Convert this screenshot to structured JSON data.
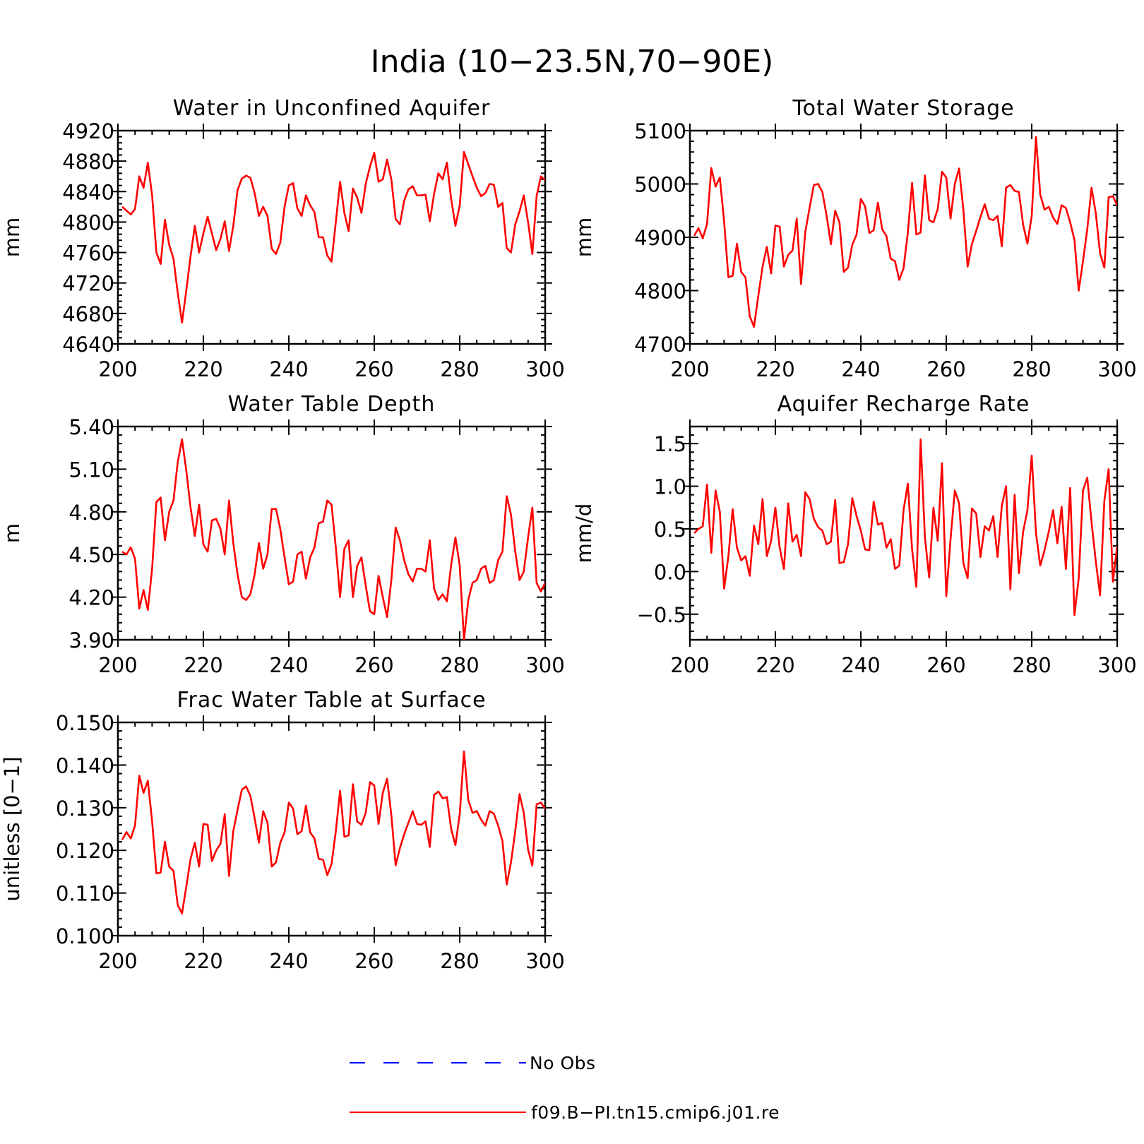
{
  "figure": {
    "title": "India (10−23.5N,70−90E)"
  },
  "legend": [
    {
      "label": "No Obs",
      "color": "#0000ff",
      "dash": "dashed"
    },
    {
      "label": "f09.B−PI.tn15.cmip6.j01.re",
      "color": "#ff0000",
      "dash": "solid"
    }
  ],
  "colors": {
    "series": "#ff0000",
    "obs": "#0000ff",
    "axis": "#000000"
  },
  "chart_data": [
    {
      "type": "line",
      "title": "Water in Unconfined Aquifer",
      "ylabel": "mm",
      "xlabel": "",
      "xlim": [
        200,
        300
      ],
      "ylim": [
        4640,
        4920
      ],
      "xticks": [
        200,
        220,
        240,
        260,
        280,
        300
      ],
      "yticks": [
        4640,
        4680,
        4720,
        4760,
        4800,
        4840,
        4880,
        4920
      ],
      "ytick_labels": [
        "4640",
        "4680",
        "4720",
        "4760",
        "4800",
        "4840",
        "4880",
        "4920"
      ],
      "x_start": 201,
      "series": [
        {
          "values": [
            4820,
            4815,
            4810,
            4817,
            4860,
            4845,
            4878,
            4835,
            4760,
            4745,
            4803,
            4770,
            4752,
            4707,
            4668,
            4710,
            4755,
            4795,
            4760,
            4785,
            4807,
            4785,
            4763,
            4778,
            4801,
            4762,
            4795,
            4842,
            4857,
            4861,
            4858,
            4838,
            4808,
            4820,
            4808,
            4765,
            4758,
            4773,
            4820,
            4848,
            4851,
            4818,
            4808,
            4835,
            4822,
            4813,
            4780,
            4780,
            4756,
            4748,
            4800,
            4853,
            4812,
            4788,
            4844,
            4832,
            4812,
            4850,
            4873,
            4891,
            4853,
            4856,
            4882,
            4856,
            4804,
            4797,
            4828,
            4843,
            4847,
            4835,
            4835,
            4836,
            4801,
            4837,
            4864,
            4856,
            4878,
            4830,
            4795,
            4822,
            4892,
            4876,
            4860,
            4845,
            4834,
            4838,
            4850,
            4849,
            4820,
            4825,
            4766,
            4760,
            4797,
            4814,
            4835,
            4800,
            4758,
            4834,
            4860,
            4855
          ]
        }
      ]
    },
    {
      "type": "line",
      "title": "Total Water Storage",
      "ylabel": "mm",
      "xlabel": "",
      "xlim": [
        200,
        300
      ],
      "ylim": [
        4700,
        5100
      ],
      "xticks": [
        200,
        220,
        240,
        260,
        280,
        300
      ],
      "yticks": [
        4700,
        4800,
        4900,
        5000,
        5100
      ],
      "ytick_labels": [
        "4700",
        "4800",
        "4900",
        "5000",
        "5100"
      ],
      "x_start": 201,
      "series": [
        {
          "values": [
            4903,
            4917,
            4898,
            4925,
            5030,
            4995,
            5012,
            4930,
            4825,
            4828,
            4888,
            4835,
            4825,
            4752,
            4732,
            4790,
            4845,
            4882,
            4832,
            4922,
            4920,
            4845,
            4867,
            4875,
            4935,
            4812,
            4910,
            4955,
            4998,
            5000,
            4985,
            4940,
            4887,
            4950,
            4928,
            4835,
            4843,
            4886,
            4905,
            4972,
            4958,
            4908,
            4913,
            4965,
            4915,
            4902,
            4860,
            4855,
            4820,
            4842,
            4908,
            5002,
            4905,
            4909,
            5016,
            4932,
            4928,
            4953,
            5023,
            5012,
            4935,
            5000,
            5029,
            4952,
            4845,
            4887,
            4912,
            4938,
            4962,
            4935,
            4932,
            4940,
            4883,
            4993,
            4998,
            4987,
            4985,
            4923,
            4888,
            4940,
            5088,
            4980,
            4952,
            4957,
            4937,
            4925,
            4960,
            4955,
            4928,
            4895,
            4800,
            4855,
            4915,
            4993,
            4945,
            4870,
            4843,
            4975,
            4977,
            4960
          ]
        }
      ]
    },
    {
      "type": "line",
      "title": "Water Table Depth",
      "ylabel": "m",
      "xlabel": "",
      "xlim": [
        200,
        300
      ],
      "ylim": [
        3.9,
        5.4
      ],
      "xticks": [
        200,
        220,
        240,
        260,
        280,
        300
      ],
      "yticks": [
        3.9,
        4.2,
        4.5,
        4.8,
        5.1,
        5.4
      ],
      "ytick_labels": [
        "3.90",
        "4.20",
        "4.50",
        "4.80",
        "5.10",
        "5.40"
      ],
      "x_start": 201,
      "series": [
        {
          "values": [
            4.52,
            4.5,
            4.55,
            4.47,
            4.12,
            4.25,
            4.11,
            4.4,
            4.87,
            4.9,
            4.6,
            4.8,
            4.88,
            5.15,
            5.31,
            5.09,
            4.83,
            4.63,
            4.85,
            4.57,
            4.52,
            4.74,
            4.75,
            4.68,
            4.5,
            4.88,
            4.58,
            4.36,
            4.2,
            4.18,
            4.22,
            4.36,
            4.58,
            4.4,
            4.5,
            4.82,
            4.82,
            4.68,
            4.48,
            4.29,
            4.31,
            4.5,
            4.52,
            4.33,
            4.48,
            4.55,
            4.72,
            4.73,
            4.88,
            4.85,
            4.55,
            4.2,
            4.54,
            4.6,
            4.2,
            4.42,
            4.48,
            4.28,
            4.1,
            4.08,
            4.35,
            4.2,
            4.06,
            4.32,
            4.69,
            4.6,
            4.46,
            4.36,
            4.31,
            4.4,
            4.4,
            4.38,
            4.6,
            4.26,
            4.18,
            4.22,
            4.17,
            4.43,
            4.62,
            4.42,
            3.9,
            4.18,
            4.3,
            4.32,
            4.4,
            4.42,
            4.3,
            4.32,
            4.46,
            4.52,
            4.91,
            4.78,
            4.52,
            4.32,
            4.38,
            4.62,
            4.83,
            4.3,
            4.24,
            4.3
          ]
        }
      ]
    },
    {
      "type": "line",
      "title": "Aquifer Recharge Rate",
      "ylabel": "mm/d",
      "xlabel": "",
      "xlim": [
        200,
        300
      ],
      "ylim": [
        -0.8,
        1.7
      ],
      "xticks": [
        200,
        220,
        240,
        260,
        280,
        300
      ],
      "yticks": [
        -0.5,
        0.0,
        0.5,
        1.0,
        1.5
      ],
      "ytick_labels": [
        "−0.5",
        "0.0",
        "0.5",
        "1.0",
        "1.5"
      ],
      "x_start": 201,
      "series": [
        {
          "values": [
            0.45,
            0.5,
            0.53,
            1.02,
            0.22,
            0.95,
            0.7,
            -0.2,
            0.18,
            0.73,
            0.28,
            0.13,
            0.18,
            -0.05,
            0.54,
            0.32,
            0.85,
            0.18,
            0.36,
            0.75,
            0.28,
            0.03,
            0.8,
            0.35,
            0.43,
            0.18,
            0.93,
            0.85,
            0.62,
            0.52,
            0.48,
            0.32,
            0.35,
            0.84,
            0.1,
            0.11,
            0.32,
            0.86,
            0.65,
            0.48,
            0.26,
            0.25,
            0.82,
            0.55,
            0.57,
            0.28,
            0.38,
            0.03,
            0.07,
            0.72,
            1.03,
            0.26,
            -0.18,
            1.55,
            0.4,
            -0.07,
            0.75,
            0.36,
            1.27,
            -0.29,
            0.38,
            0.95,
            0.8,
            0.1,
            -0.08,
            0.74,
            0.68,
            0.17,
            0.53,
            0.48,
            0.65,
            0.17,
            0.77,
            1.0,
            -0.21,
            0.9,
            -0.02,
            0.47,
            0.72,
            1.36,
            0.45,
            0.07,
            0.25,
            0.47,
            0.72,
            0.33,
            0.76,
            0.03,
            0.98,
            -0.51,
            -0.08,
            0.95,
            1.1,
            0.58,
            0.12,
            -0.28,
            0.83,
            1.2,
            -0.12,
            0.3
          ]
        }
      ]
    },
    {
      "type": "line",
      "title": "Frac Water Table at Surface",
      "ylabel": "unitless [0−1]",
      "xlabel": "",
      "xlim": [
        200,
        300
      ],
      "ylim": [
        0.1,
        0.15
      ],
      "xticks": [
        200,
        220,
        240,
        260,
        280,
        300
      ],
      "yticks": [
        0.1,
        0.11,
        0.12,
        0.13,
        0.14,
        0.15
      ],
      "ytick_labels": [
        "0.100",
        "0.110",
        "0.120",
        "0.130",
        "0.140",
        "0.150"
      ],
      "x_start": 201,
      "series": [
        {
          "values": [
            0.1225,
            0.1243,
            0.1228,
            0.1258,
            0.1375,
            0.1335,
            0.1363,
            0.1268,
            0.1146,
            0.1148,
            0.122,
            0.1162,
            0.1152,
            0.1072,
            0.1052,
            0.1115,
            0.118,
            0.1218,
            0.1162,
            0.1262,
            0.126,
            0.1175,
            0.12,
            0.1215,
            0.1285,
            0.114,
            0.1245,
            0.1295,
            0.1342,
            0.135,
            0.1328,
            0.1275,
            0.1218,
            0.1292,
            0.1265,
            0.1162,
            0.1172,
            0.1218,
            0.1242,
            0.1312,
            0.1298,
            0.1238,
            0.1245,
            0.1305,
            0.1242,
            0.1228,
            0.118,
            0.1178,
            0.1142,
            0.1168,
            0.1245,
            0.134,
            0.1232,
            0.1235,
            0.1355,
            0.1268,
            0.126,
            0.1288,
            0.136,
            0.1352,
            0.1262,
            0.1335,
            0.1368,
            0.1282,
            0.1165,
            0.1205,
            0.1238,
            0.1265,
            0.1292,
            0.1262,
            0.126,
            0.1268,
            0.1208,
            0.133,
            0.1338,
            0.1322,
            0.1325,
            0.125,
            0.1212,
            0.1285,
            0.1432,
            0.1318,
            0.1288,
            0.1292,
            0.1272,
            0.1258,
            0.1292,
            0.1286,
            0.1258,
            0.1222,
            0.112,
            0.1172,
            0.1245,
            0.1332,
            0.1288,
            0.1202,
            0.1164,
            0.1308,
            0.1312,
            0.1298
          ]
        }
      ]
    }
  ]
}
